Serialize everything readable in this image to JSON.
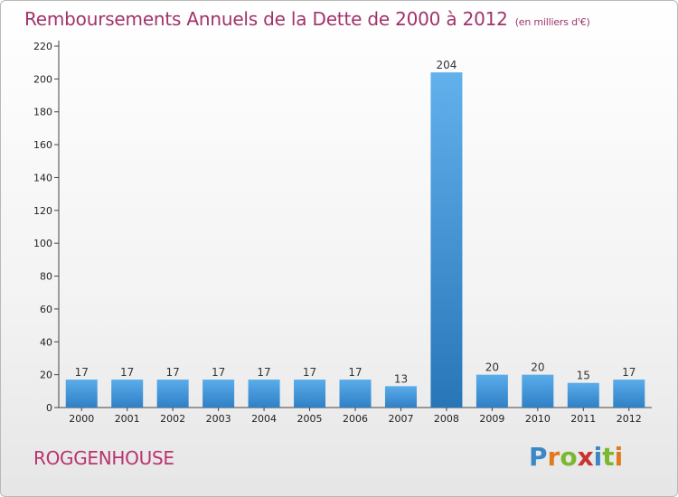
{
  "title": "Remboursements Annuels de la Dette de 2000 à 2012",
  "subtitle": "(en milliers d'€)",
  "commune": "ROGGENHOUSE",
  "logo": {
    "text": "Proxiti",
    "letters": [
      "P",
      "r",
      "o",
      "x",
      "i",
      "t",
      "i"
    ],
    "colors": [
      "#3a87c8",
      "#e07a1f",
      "#7cb82f",
      "#c7332f",
      "#3a87c8",
      "#7cb82f",
      "#e07a1f"
    ]
  },
  "colors": {
    "bar": "#3e93d6",
    "bar_highlight": "#2c7fc2",
    "title": "#a0336a"
  },
  "chart_data": {
    "type": "bar",
    "categories": [
      "2000",
      "2001",
      "2002",
      "2003",
      "2004",
      "2005",
      "2006",
      "2007",
      "2008",
      "2009",
      "2010",
      "2011",
      "2012"
    ],
    "values": [
      17,
      17,
      17,
      17,
      17,
      17,
      17,
      13,
      204,
      20,
      20,
      15,
      17
    ],
    "title": "Remboursements Annuels de la Dette de 2000 à 2012",
    "subtitle": "(en milliers d'€)",
    "ylim": [
      0,
      220
    ],
    "yticks": [
      0,
      20,
      40,
      60,
      80,
      100,
      120,
      140,
      160,
      180,
      200,
      220
    ],
    "grid": false,
    "legend": "none"
  }
}
